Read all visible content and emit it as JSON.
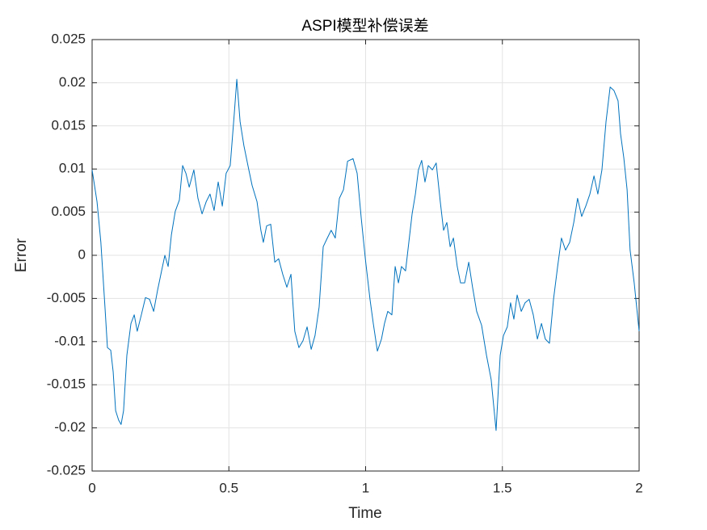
{
  "chart_data": {
    "type": "line",
    "title": "ASPI模型补偿误差",
    "xlabel": "Time",
    "ylabel": "Error",
    "xlim": [
      0,
      2
    ],
    "xticks": [
      0,
      0.5,
      1,
      1.5,
      2
    ],
    "ylim": [
      -0.025,
      0.025
    ],
    "yticks": [
      -0.025,
      -0.02,
      -0.015,
      -0.01,
      -0.005,
      0,
      0.005,
      0.01,
      0.015,
      0.02,
      0.025
    ],
    "grid": true,
    "x": [
      0,
      0.018,
      0.032,
      0.047,
      0.056,
      0.068,
      0.077,
      0.086,
      0.097,
      0.106,
      0.115,
      0.127,
      0.142,
      0.154,
      0.165,
      0.18,
      0.195,
      0.21,
      0.225,
      0.239,
      0.254,
      0.266,
      0.278,
      0.29,
      0.304,
      0.319,
      0.331,
      0.343,
      0.355,
      0.372,
      0.387,
      0.402,
      0.417,
      0.431,
      0.446,
      0.461,
      0.476,
      0.49,
      0.505,
      0.52,
      0.529,
      0.541,
      0.555,
      0.573,
      0.585,
      0.603,
      0.617,
      0.626,
      0.638,
      0.653,
      0.668,
      0.682,
      0.697,
      0.712,
      0.727,
      0.741,
      0.756,
      0.771,
      0.786,
      0.801,
      0.815,
      0.83,
      0.845,
      0.86,
      0.874,
      0.889,
      0.904,
      0.919,
      0.934,
      0.954,
      0.969,
      0.984,
      0.999,
      1.016,
      1.028,
      1.043,
      1.058,
      1.069,
      1.081,
      1.096,
      1.108,
      1.12,
      1.131,
      1.146,
      1.158,
      1.17,
      1.182,
      1.193,
      1.205,
      1.217,
      1.229,
      1.244,
      1.258,
      1.273,
      1.285,
      1.297,
      1.309,
      1.321,
      1.335,
      1.347,
      1.362,
      1.377,
      1.391,
      1.406,
      1.424,
      1.442,
      1.459,
      1.477,
      1.492,
      1.504,
      1.518,
      1.53,
      1.542,
      1.554,
      1.569,
      1.583,
      1.598,
      1.613,
      1.628,
      1.643,
      1.657,
      1.672,
      1.687,
      1.702,
      1.716,
      1.731,
      1.746,
      1.761,
      1.775,
      1.79,
      1.805,
      1.82,
      1.835,
      1.849,
      1.864,
      1.879,
      1.894,
      1.908,
      1.923,
      1.932,
      1.944,
      1.956,
      1.967,
      1.982,
      2.0
    ],
    "series": [
      {
        "name": "Error",
        "color": "#0072bd",
        "values": [
          0.0099,
          0.0062,
          0.0015,
          -0.006,
          -0.0107,
          -0.011,
          -0.0135,
          -0.018,
          -0.0191,
          -0.0196,
          -0.018,
          -0.0116,
          -0.0079,
          -0.0069,
          -0.0088,
          -0.0069,
          -0.0049,
          -0.0051,
          -0.0065,
          -0.0041,
          -0.0018,
          0,
          -0.0013,
          0.0024,
          0.0051,
          0.0064,
          0.0104,
          0.0095,
          0.0079,
          0.0099,
          0.0066,
          0.0048,
          0.0062,
          0.0071,
          0.0052,
          0.0085,
          0.0057,
          0.0095,
          0.0104,
          0.0165,
          0.0204,
          0.0155,
          0.0127,
          0.0099,
          0.0081,
          0.0062,
          0.0029,
          0.0015,
          0.0034,
          0.0036,
          -0.0008,
          -0.0004,
          -0.0022,
          -0.0037,
          -0.0022,
          -0.0088,
          -0.0107,
          -0.0099,
          -0.0083,
          -0.0109,
          -0.0093,
          -0.006,
          0.001,
          0.002,
          0.0029,
          0.002,
          0.0066,
          0.0076,
          0.0109,
          0.0112,
          0.0095,
          0.0043,
          -0.0004,
          -0.0051,
          -0.0079,
          -0.0111,
          -0.0097,
          -0.0079,
          -0.0065,
          -0.0069,
          -0.0013,
          -0.0032,
          -0.0013,
          -0.0018,
          0.0015,
          0.0048,
          0.0071,
          0.0099,
          0.011,
          0.0085,
          0.0104,
          0.0099,
          0.0107,
          0.0062,
          0.0029,
          0.0038,
          0.001,
          0.002,
          -0.0013,
          -0.0032,
          -0.0032,
          -0.0008,
          -0.0037,
          -0.0065,
          -0.0081,
          -0.0116,
          -0.0144,
          -0.0203,
          -0.0116,
          -0.0093,
          -0.0083,
          -0.0055,
          -0.0074,
          -0.0046,
          -0.0065,
          -0.0055,
          -0.0051,
          -0.0069,
          -0.0097,
          -0.0079,
          -0.0097,
          -0.0102,
          -0.0051,
          -0.0013,
          0.002,
          0.0006,
          0.0015,
          0.0038,
          0.0066,
          0.0045,
          0.0057,
          0.0071,
          0.0092,
          0.0071,
          0.0099,
          0.0155,
          0.0195,
          0.0191,
          0.0179,
          0.0141,
          0.0113,
          0.0076,
          0.0006,
          -0.0032,
          -0.0088
        ]
      }
    ]
  }
}
